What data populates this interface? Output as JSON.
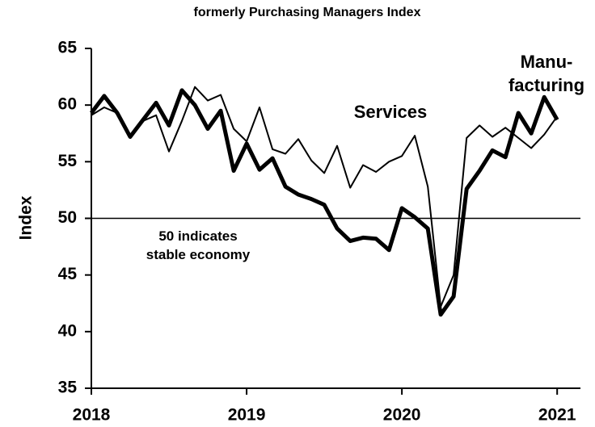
{
  "chart_data": {
    "type": "line",
    "subtitle": "formerly Purchasing Managers Index",
    "y_label": "Index",
    "x": [
      2018,
      2018.083,
      2018.167,
      2018.25,
      2018.333,
      2018.417,
      2018.5,
      2018.583,
      2018.667,
      2018.75,
      2018.833,
      2018.917,
      2019,
      2019.083,
      2019.167,
      2019.25,
      2019.333,
      2019.417,
      2019.5,
      2019.583,
      2019.667,
      2019.75,
      2019.833,
      2019.917,
      2020,
      2020.083,
      2020.167,
      2020.25,
      2020.333,
      2020.417,
      2020.5,
      2020.583,
      2020.667,
      2020.75,
      2020.833,
      2020.917,
      2021
    ],
    "series": [
      {
        "name": "Services",
        "color": "#000000",
        "width": 2,
        "values": [
          59.1,
          59.8,
          59.3,
          57.2,
          58.6,
          59.1,
          55.9,
          58.6,
          61.6,
          60.4,
          60.9,
          57.9,
          56.8,
          59.8,
          56.1,
          55.7,
          57.0,
          55.1,
          54.0,
          56.4,
          52.7,
          54.7,
          54.1,
          55.0,
          55.5,
          57.3,
          52.8,
          42.2,
          45.0,
          57.1,
          58.2,
          57.2,
          58.0,
          57.1,
          56.2,
          57.4,
          59.0
        ]
      },
      {
        "name": "Manu- facturing",
        "color": "#000000",
        "width": 5,
        "values": [
          59.3,
          60.8,
          59.3,
          57.2,
          58.7,
          60.2,
          58.2,
          61.3,
          60.0,
          57.9,
          59.5,
          54.2,
          56.6,
          54.3,
          55.3,
          52.8,
          52.1,
          51.7,
          51.2,
          49.1,
          48.0,
          48.3,
          48.2,
          47.2,
          50.9,
          50.1,
          49.1,
          41.5,
          43.1,
          52.6,
          54.2,
          56.0,
          55.4,
          59.3,
          57.5,
          60.7,
          58.7
        ]
      }
    ],
    "reference_line": 50,
    "annotation": [
      "50 indicates",
      "stable economy"
    ],
    "xlim": [
      2018,
      2021.15
    ],
    "xticks": [
      2018,
      2019,
      2020,
      2021
    ],
    "ylim": [
      35,
      65
    ],
    "yticks": [
      35,
      40,
      45,
      50,
      55,
      60,
      65
    ]
  }
}
